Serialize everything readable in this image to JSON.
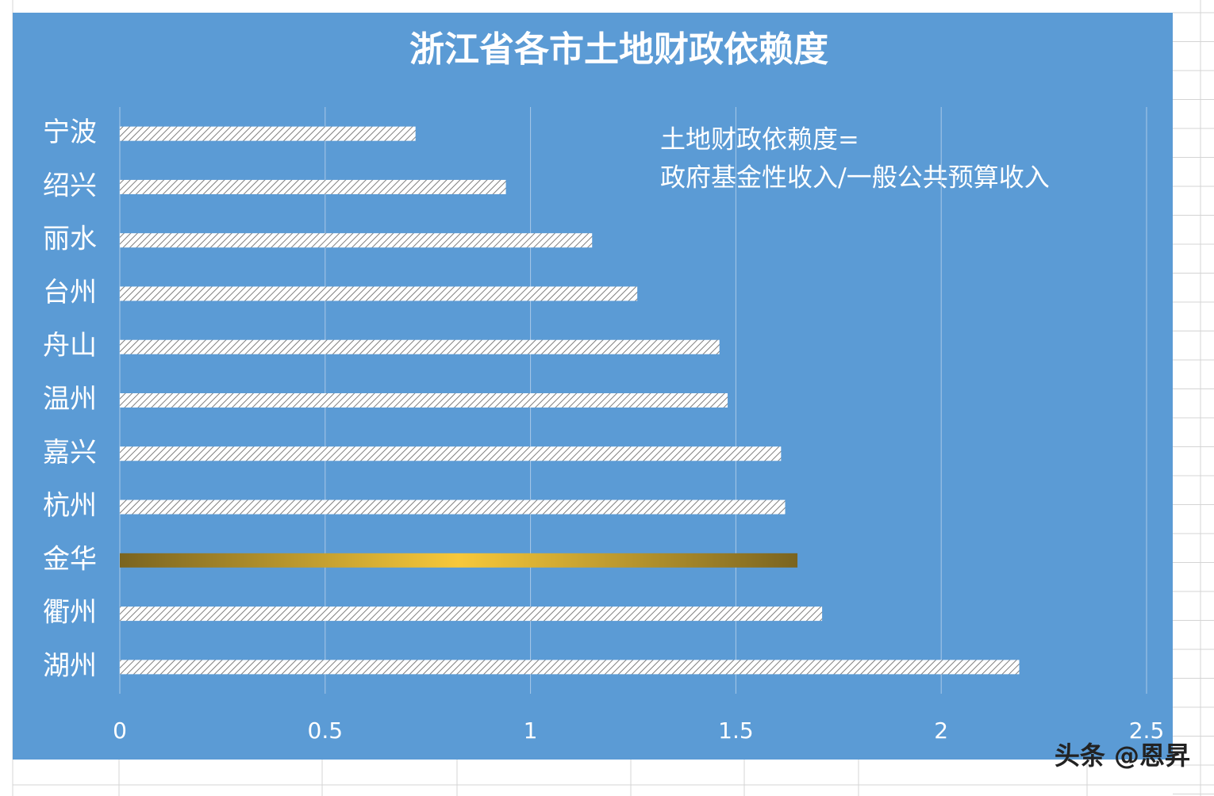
{
  "chart_data": {
    "type": "bar",
    "orientation": "horizontal",
    "title": "浙江省各市土地财政依赖度",
    "annotation": [
      "土地财政依赖度=",
      "政府基金性收入/一般公共预算收入"
    ],
    "categories": [
      "宁波",
      "绍兴",
      "丽水",
      "台州",
      "舟山",
      "温州",
      "嘉兴",
      "杭州",
      "金华",
      "衢州",
      "湖州"
    ],
    "values": [
      0.72,
      0.94,
      1.15,
      1.26,
      1.46,
      1.48,
      1.61,
      1.62,
      1.65,
      1.71,
      2.19
    ],
    "bar_colors": [
      "#ffffff",
      "#ffffff",
      "#ffffff",
      "#ffffff",
      "#ffffff",
      "#ffffff",
      "#ffffff",
      "#ffffff",
      "#f7c83a",
      "#ffffff",
      "#ffffff"
    ],
    "background": "#5b9bd5",
    "xlim": [
      0,
      2.5
    ],
    "xticks": [
      0,
      0.5,
      1,
      1.5,
      2,
      2.5
    ],
    "grid": true
  },
  "watermark": "头条 @恩昇"
}
